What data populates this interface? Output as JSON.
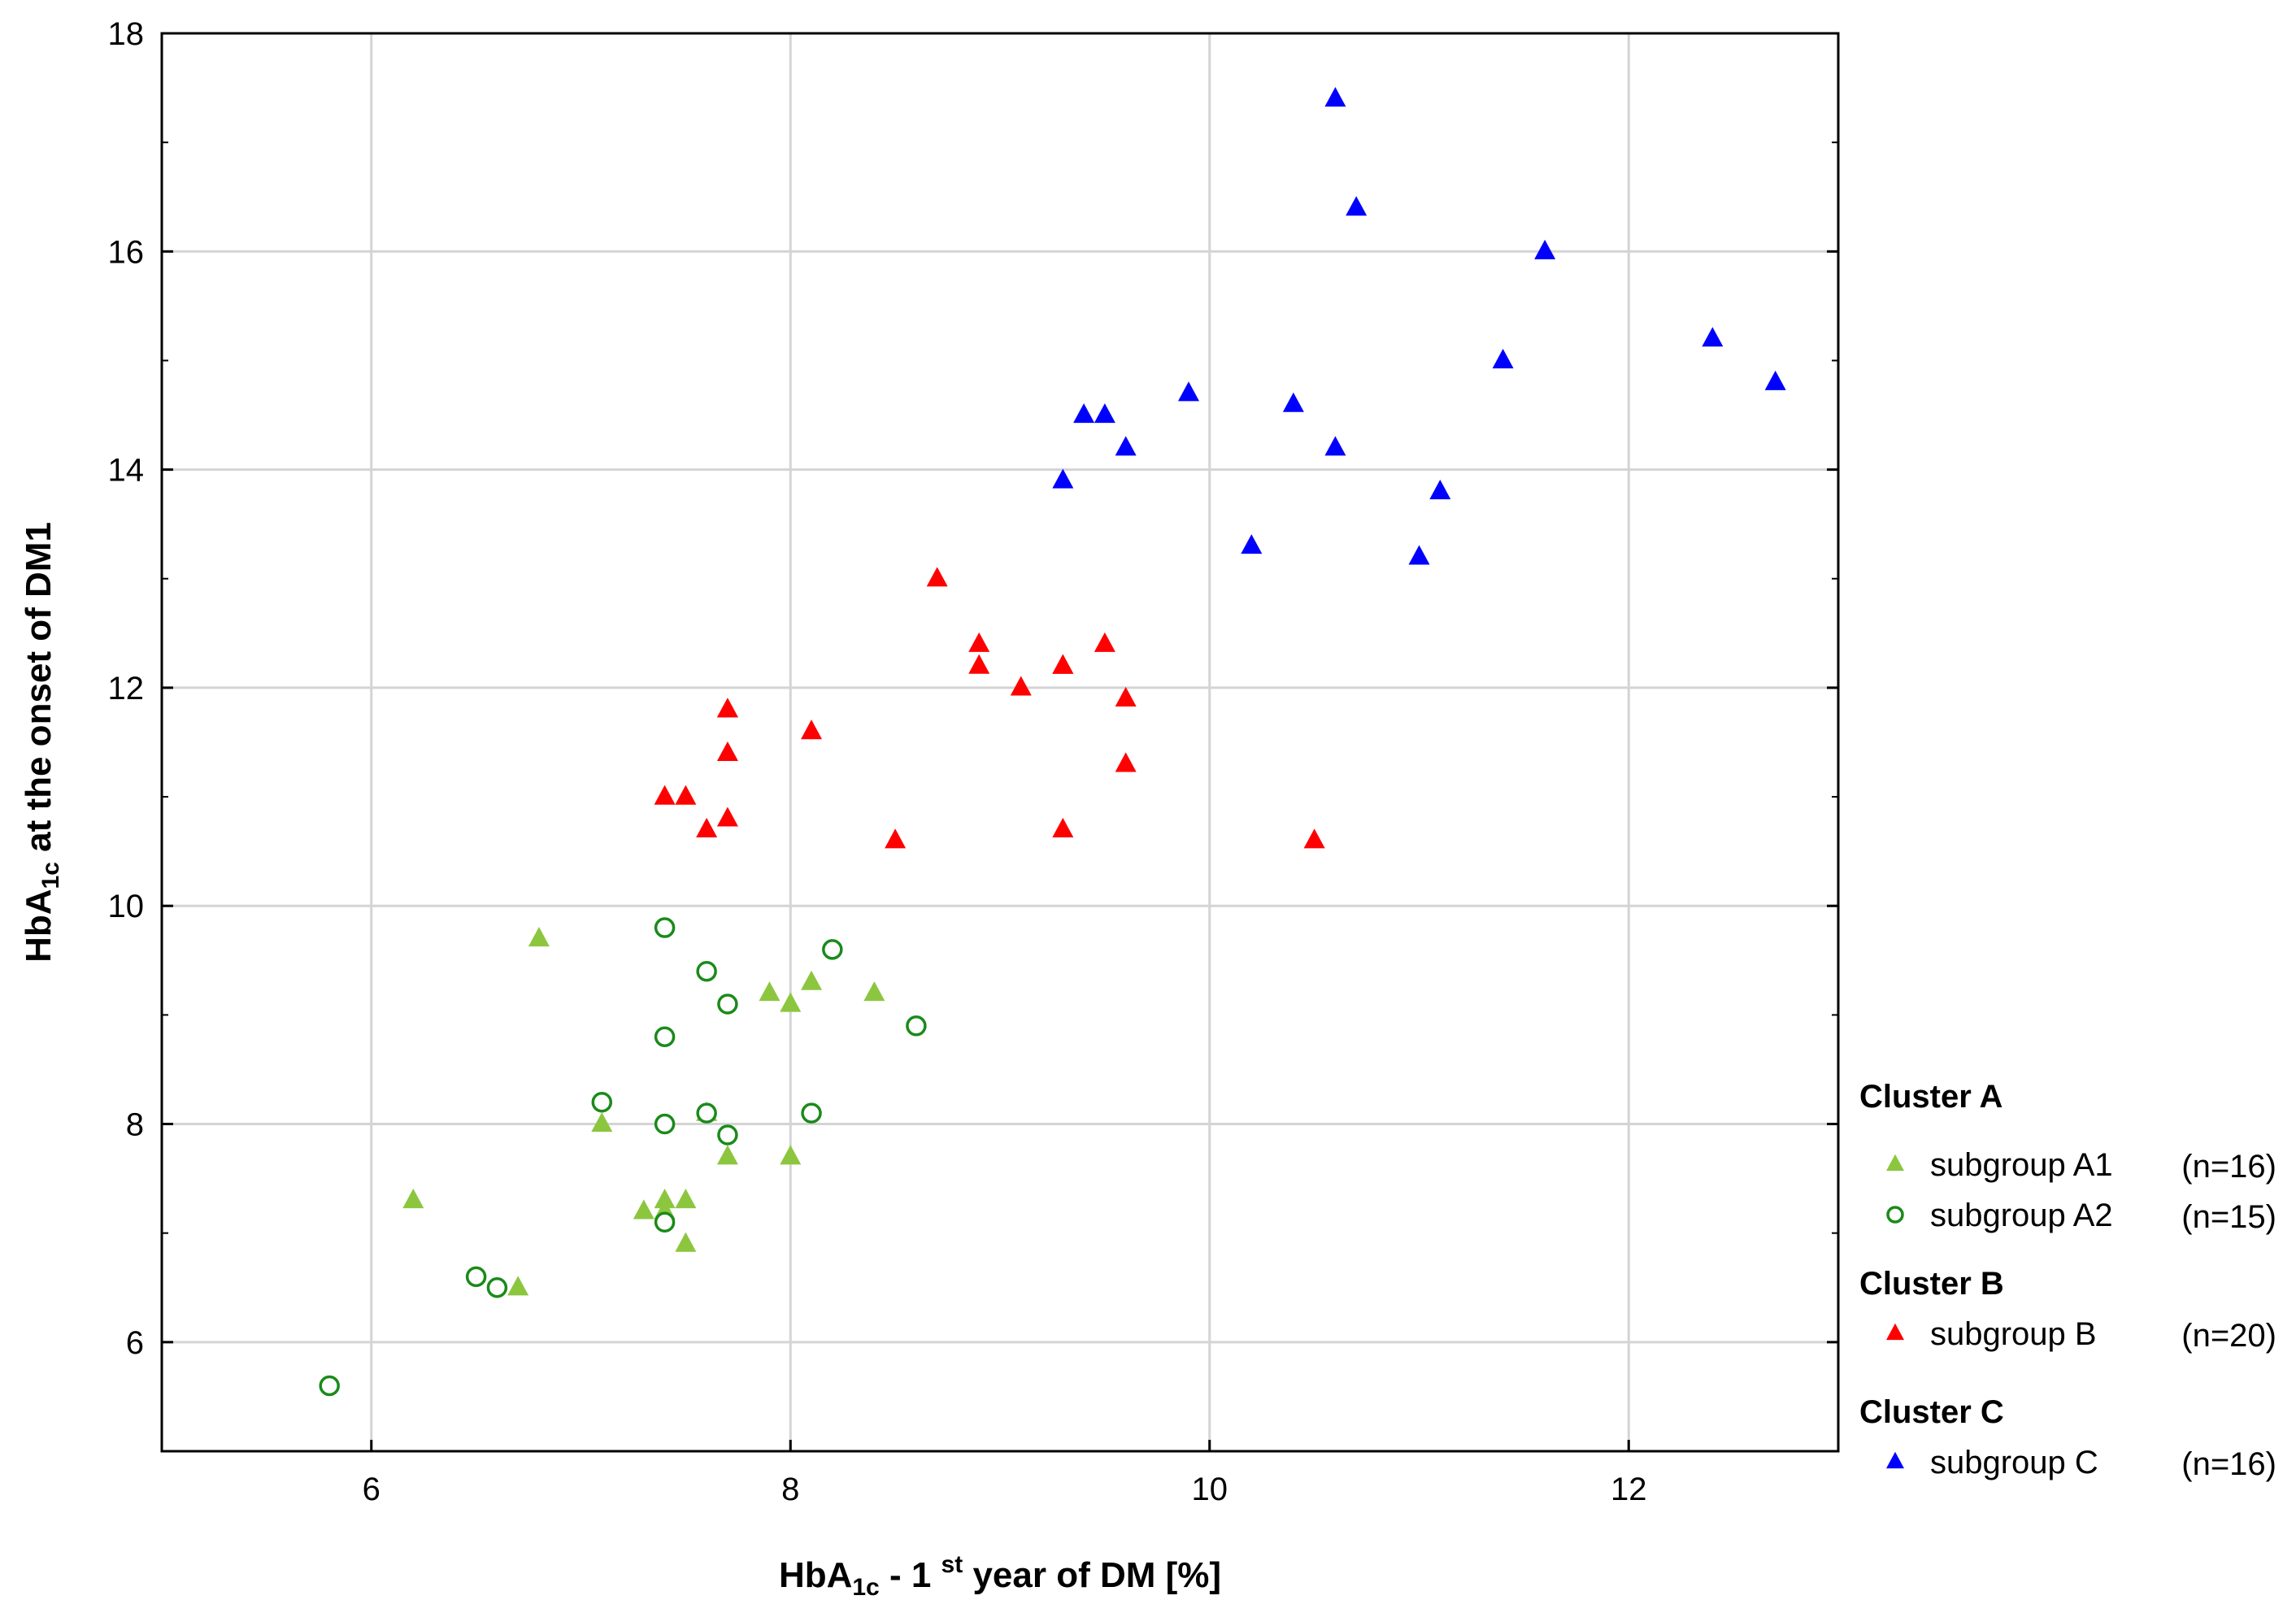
{
  "chart_data": {
    "type": "scatter",
    "title": "",
    "xlabel": {
      "main": "HbA",
      "sub": "1c",
      "rest": " - 1 ",
      "sup": "st",
      "end": " year of DM [%]"
    },
    "ylabel": {
      "main": "HbA",
      "sub": "1c",
      "rest": " at the onset of DM1"
    },
    "xlim": [
      5,
      13
    ],
    "ylim": [
      5,
      18
    ],
    "xticks": [
      "6",
      "8",
      "10",
      "12"
    ],
    "yticks": [
      "6",
      "8",
      "10",
      "12",
      "14",
      "16",
      "18"
    ],
    "grid": true,
    "legend_position": "right",
    "clusters": [
      {
        "heading": "Cluster A",
        "series": [
          "A1",
          "A2"
        ]
      },
      {
        "heading": "Cluster B",
        "series": [
          "B"
        ]
      },
      {
        "heading": "Cluster C",
        "series": [
          "C"
        ]
      }
    ],
    "series": [
      {
        "id": "A1",
        "name": "subgroup A1",
        "count": "(n=16)",
        "marker": "triangle-filled",
        "color": "#8cc63f",
        "points": [
          [
            6.2,
            7.3
          ],
          [
            6.8,
            9.7
          ],
          [
            6.7,
            6.5
          ],
          [
            7.1,
            8.0
          ],
          [
            7.3,
            7.2
          ],
          [
            7.4,
            7.3
          ],
          [
            7.5,
            7.3
          ],
          [
            7.5,
            6.9
          ],
          [
            7.6,
            8.1
          ],
          [
            7.7,
            7.7
          ],
          [
            7.9,
            9.2
          ],
          [
            8.0,
            9.1
          ],
          [
            8.1,
            9.3
          ],
          [
            8.0,
            7.7
          ],
          [
            8.4,
            9.2
          ],
          [
            7.4,
            7.2
          ]
        ]
      },
      {
        "id": "A2",
        "name": "subgroup A2",
        "count": "(n=15)",
        "marker": "circle-open",
        "color": "#1a8a1a",
        "points": [
          [
            5.8,
            5.6
          ],
          [
            6.5,
            6.6
          ],
          [
            6.6,
            6.5
          ],
          [
            7.1,
            8.2
          ],
          [
            7.4,
            9.8
          ],
          [
            7.4,
            8.8
          ],
          [
            7.4,
            8.0
          ],
          [
            7.4,
            7.1
          ],
          [
            7.6,
            9.4
          ],
          [
            7.6,
            8.1
          ],
          [
            7.7,
            9.1
          ],
          [
            7.7,
            7.9
          ],
          [
            8.1,
            8.1
          ],
          [
            8.2,
            9.6
          ],
          [
            8.6,
            8.9
          ]
        ]
      },
      {
        "id": "B",
        "name": "subgroup B",
        "count": "(n=20)",
        "marker": "triangle-filled",
        "color": "#ff0000",
        "points": [
          [
            7.4,
            11.0
          ],
          [
            7.5,
            11.0
          ],
          [
            7.6,
            10.7
          ],
          [
            7.7,
            11.8
          ],
          [
            7.7,
            11.4
          ],
          [
            7.7,
            10.8
          ],
          [
            8.1,
            11.6
          ],
          [
            8.5,
            10.6
          ],
          [
            8.7,
            13.0
          ],
          [
            8.9,
            12.4
          ],
          [
            8.9,
            12.2
          ],
          [
            9.1,
            12.0
          ],
          [
            9.3,
            12.2
          ],
          [
            9.3,
            10.7
          ],
          [
            9.5,
            12.4
          ],
          [
            9.6,
            11.9
          ],
          [
            9.6,
            11.3
          ],
          [
            10.5,
            10.6
          ],
          [
            9.3,
            12.2
          ],
          [
            7.7,
            11.8
          ]
        ]
      },
      {
        "id": "C",
        "name": "subgroup C",
        "count": "(n=16)",
        "marker": "triangle-filled",
        "color": "#0000ff",
        "points": [
          [
            9.3,
            13.9
          ],
          [
            9.4,
            14.5
          ],
          [
            9.5,
            14.5
          ],
          [
            9.6,
            14.2
          ],
          [
            9.9,
            14.7
          ],
          [
            10.2,
            13.3
          ],
          [
            10.4,
            14.6
          ],
          [
            10.6,
            17.4
          ],
          [
            10.6,
            14.2
          ],
          [
            10.7,
            16.4
          ],
          [
            11.0,
            13.2
          ],
          [
            11.1,
            13.8
          ],
          [
            11.4,
            15.0
          ],
          [
            11.6,
            16.0
          ],
          [
            12.4,
            15.2
          ],
          [
            12.7,
            14.8
          ]
        ]
      }
    ]
  }
}
